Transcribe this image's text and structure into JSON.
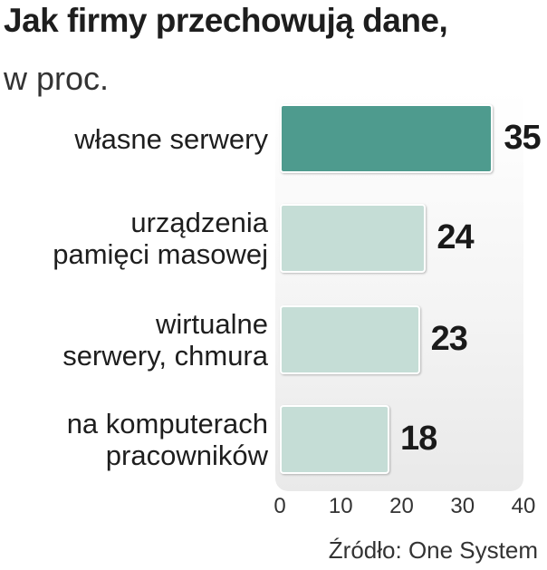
{
  "chart_data": {
    "type": "bar",
    "orientation": "horizontal",
    "title": "Jak firmy przechowują dane,",
    "subtitle": "w proc.",
    "categories": [
      [
        "własne serwery"
      ],
      [
        "urządzenia",
        "pamięci masowej"
      ],
      [
        "wirtualne",
        "serwery, chmura"
      ],
      [
        "na komputerach",
        "pracowników"
      ]
    ],
    "values": [
      35,
      24,
      23,
      18
    ],
    "value_labels": [
      "35",
      "24",
      "23",
      "18"
    ],
    "bar_colors": [
      "#4e9b8e",
      "#c5ddd6",
      "#c5ddd6",
      "#c5ddd6"
    ],
    "xlim": [
      0,
      40
    ],
    "xticks": [
      "0",
      "10",
      "20",
      "30",
      "40"
    ],
    "grid": false,
    "source": "Źródło: One System"
  }
}
